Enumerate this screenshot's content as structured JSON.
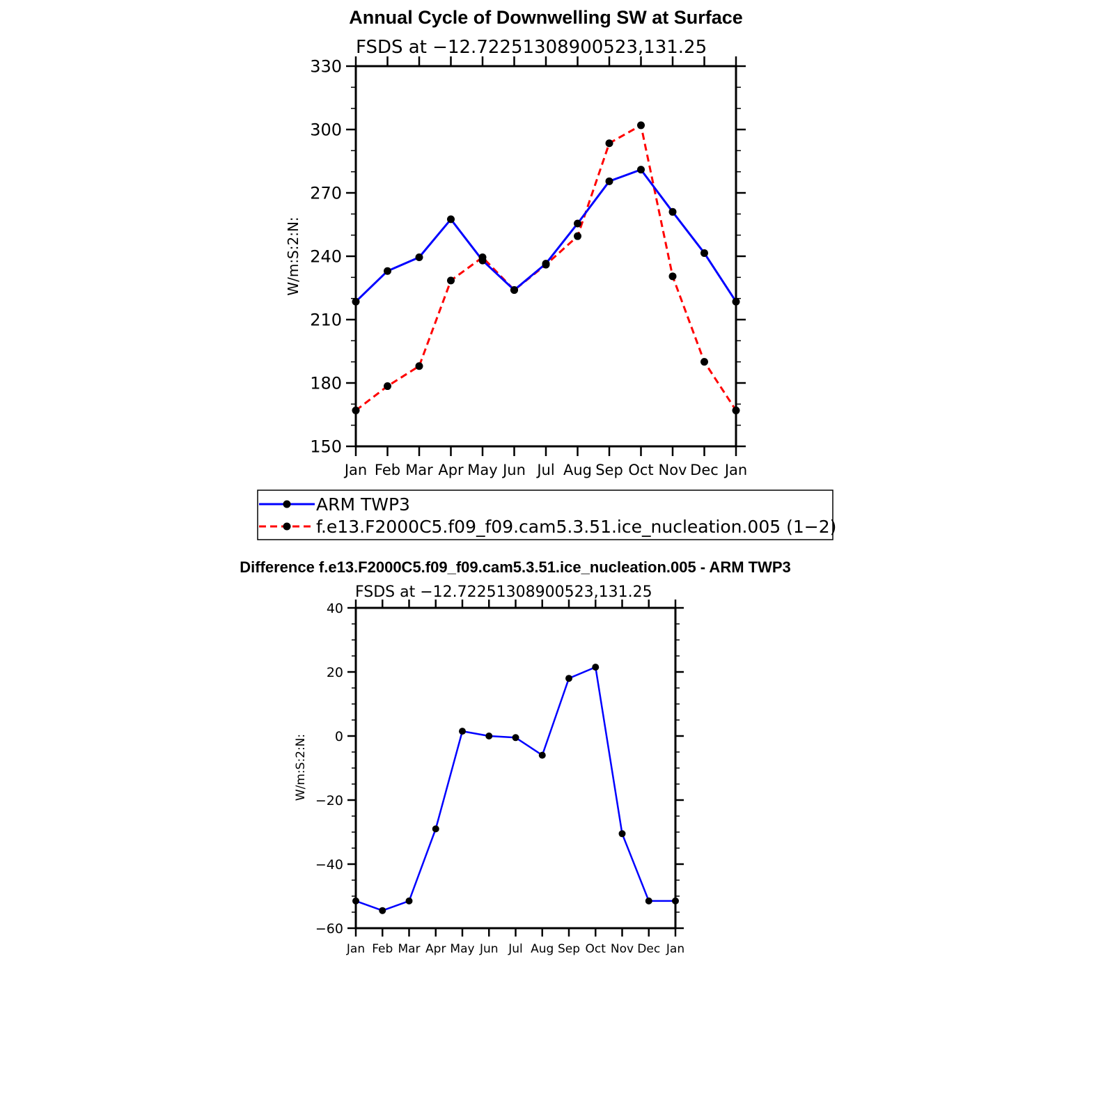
{
  "chart_data": [
    {
      "type": "line",
      "title": "Annual Cycle of Downwelling SW at Surface",
      "subtitle": "FSDS at −12.72251308900523,131.25",
      "ylabel": "W/m:S:2:N:",
      "xlabel": "",
      "categories": [
        "Jan",
        "Feb",
        "Mar",
        "Apr",
        "May",
        "Jun",
        "Jul",
        "Aug",
        "Sep",
        "Oct",
        "Nov",
        "Dec",
        "Jan"
      ],
      "ylim": [
        150,
        330
      ],
      "yticks": [
        150,
        180,
        210,
        240,
        270,
        300,
        330
      ],
      "ytick_labels": [
        "150",
        "180",
        "210",
        "240",
        "270",
        "300",
        "330"
      ],
      "grid": false,
      "legend_position": "bottom",
      "series": [
        {
          "name": "ARM TWP3",
          "color": "#0000ff",
          "dash": "solid",
          "values": [
            218.5,
            233.0,
            239.5,
            257.5,
            238.0,
            224.0,
            236.5,
            255.5,
            275.5,
            281.0,
            261.0,
            241.5,
            218.5
          ]
        },
        {
          "name": "f.e13.F2000C5.f09_f09.cam5.3.51.ice_nucleation.005 (1−2)",
          "color": "#ff0000",
          "dash": "dashed",
          "values": [
            167.0,
            178.5,
            188.0,
            228.5,
            239.5,
            224.0,
            236.0,
            249.5,
            293.5,
            302.0,
            230.5,
            190.0,
            167.0
          ]
        }
      ]
    },
    {
      "type": "line",
      "title": "Difference f.e13.F2000C5.f09_f09.cam5.3.51.ice_nucleation.005 - ARM TWP3",
      "subtitle": "FSDS at −12.72251308900523,131.25",
      "ylabel": "W/m:S:2:N:",
      "xlabel": "",
      "categories": [
        "Jan",
        "Feb",
        "Mar",
        "Apr",
        "May",
        "Jun",
        "Jul",
        "Aug",
        "Sep",
        "Oct",
        "Nov",
        "Dec",
        "Jan"
      ],
      "ylim": [
        -60,
        40
      ],
      "yticks": [
        -60,
        -40,
        -20,
        0,
        20,
        40
      ],
      "ytick_labels": [
        "−60",
        "−40",
        "−20",
        "0",
        "20",
        "40"
      ],
      "grid": false,
      "series": [
        {
          "color": "#0000ff",
          "dash": "solid",
          "values": [
            -51.5,
            -54.5,
            -51.5,
            -29.0,
            1.5,
            0.0,
            -0.5,
            -6.0,
            18.0,
            21.5,
            -30.5,
            -51.5,
            -51.5
          ]
        }
      ]
    }
  ]
}
